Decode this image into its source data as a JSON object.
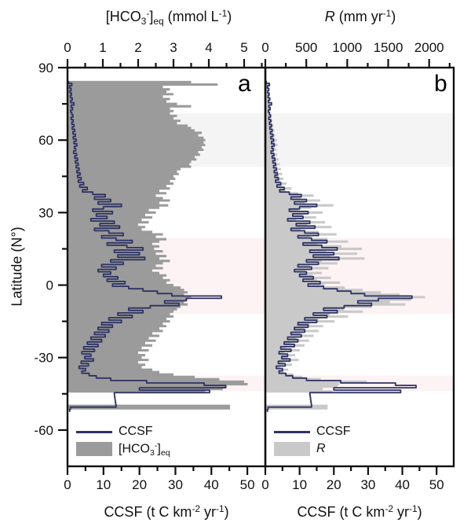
{
  "figure": {
    "y_axis": {
      "label": "Latitude (N°)",
      "major_ticks": [
        90,
        60,
        30,
        0,
        -30,
        -60
      ],
      "minor_ticks": [
        75,
        45,
        15,
        -15,
        -45
      ],
      "range": [
        90,
        -75
      ]
    },
    "panels": [
      {
        "letter": "a",
        "top_axis": {
          "title_parts": [
            {
              "t": "[HCO"
            },
            {
              "t": "3",
              "sub": true
            },
            {
              "t": "-",
              "sup": true
            },
            {
              "t": "]"
            },
            {
              "t": "eq",
              "sub": true
            },
            {
              "t": " (mmol L"
            },
            {
              "t": "-1",
              "sup": true
            },
            {
              "t": ")"
            }
          ],
          "major_ticks": [
            0,
            1,
            2,
            3,
            4,
            5
          ],
          "minor_step": 0.5,
          "range": [
            0,
            5.6
          ]
        },
        "bottom_axis": {
          "title_parts": [
            {
              "t": "CCSF (t C km"
            },
            {
              "t": "-2",
              "sup": true
            },
            {
              "t": " yr"
            },
            {
              "t": "-1",
              "sup": true
            },
            {
              "t": ")"
            }
          ],
          "major_ticks": [
            0,
            10,
            20,
            30,
            40,
            50
          ],
          "minor_step": 5,
          "range": [
            0,
            55
          ]
        },
        "legend": {
          "line_label": "CCSF",
          "area_label_parts": [
            {
              "t": "[HCO"
            },
            {
              "t": "3",
              "sub": true
            },
            {
              "t": "-",
              "sup": true
            },
            {
              "t": "]"
            },
            {
              "t": "eq",
              "sub": true
            }
          ]
        }
      },
      {
        "letter": "b",
        "top_axis": {
          "title_parts": [
            {
              "t": "R",
              "i": true
            },
            {
              "t": " (mm yr"
            },
            {
              "t": "-1",
              "sup": true
            },
            {
              "t": ")"
            }
          ],
          "major_ticks": [
            0,
            500,
            1000,
            1500,
            2000
          ],
          "minor_step": 250,
          "range": [
            0,
            2300
          ]
        },
        "bottom_axis": {
          "title_parts": [
            {
              "t": "CCSF (t C km"
            },
            {
              "t": "-2",
              "sup": true
            },
            {
              "t": " yr"
            },
            {
              "t": "-1",
              "sup": true
            },
            {
              "t": ")"
            }
          ],
          "major_ticks": [
            0,
            10,
            20,
            30,
            40,
            50
          ],
          "minor_step": 5,
          "range": [
            0,
            55
          ]
        },
        "legend": {
          "line_label": "CCSF",
          "area_label_parts": [
            {
              "t": "R",
              "i": true
            }
          ]
        }
      }
    ],
    "colors": {
      "line": "#2e3262",
      "hco3_fill": "#9b9b9b",
      "runoff_fill": "#c9c9c9",
      "band_gray": "#f4f4f4",
      "band_pink": "#fdf2f4",
      "frame": "#111111"
    },
    "bands": [
      {
        "lat_from": 71,
        "lat_to": 49,
        "color_key": "band_gray"
      },
      {
        "lat_from": 19.5,
        "lat_to": -12,
        "color_key": "band_pink"
      },
      {
        "lat_from": -37.4,
        "lat_to": -43.9,
        "color_key": "band_pink"
      }
    ]
  },
  "chart_data": {
    "type": "line",
    "orientation": "horizontal profile, y axis = latitude (°N), values on x axes",
    "y_range_latitude": [
      90,
      -75
    ],
    "panel_a_top_axis_range_mmol_L": [
      0,
      5.6
    ],
    "panel_b_top_axis_range_mm_yr": [
      0,
      2300
    ],
    "bottom_axis_range_t_C_km2_yr": [
      0,
      55
    ],
    "latitude": [
      84,
      83,
      82,
      81,
      80,
      79,
      78,
      77,
      76,
      75,
      74,
      73,
      72,
      71,
      70,
      69,
      68,
      67,
      66,
      65,
      64,
      63,
      62,
      61,
      60,
      59,
      58,
      57,
      56,
      55,
      54,
      53,
      52,
      51,
      50,
      49,
      48,
      47,
      46,
      45,
      44,
      43,
      42,
      41,
      40,
      39,
      38,
      37,
      36,
      35,
      34,
      33,
      32,
      31,
      30,
      29,
      28,
      27,
      26,
      25,
      24,
      23,
      22,
      21,
      20,
      19,
      18,
      17,
      16,
      15,
      14,
      13,
      12,
      11,
      10,
      9,
      8,
      7,
      6,
      5,
      4,
      3,
      2,
      1,
      0,
      -1,
      -2,
      -3,
      -4,
      -5,
      -6,
      -7,
      -8,
      -9,
      -10,
      -11,
      -12,
      -13,
      -14,
      -15,
      -16,
      -17,
      -18,
      -19,
      -20,
      -21,
      -22,
      -23,
      -24,
      -25,
      -26,
      -27,
      -28,
      -29,
      -30,
      -31,
      -32,
      -33,
      -34,
      -35,
      -36,
      -37,
      -38,
      -39,
      -40,
      -41,
      -42,
      -43,
      -44,
      -45,
      -46,
      -47,
      -48,
      -49,
      -50,
      -51,
      -52
    ],
    "series": [
      {
        "name": "CCSF",
        "unit": "t C km-2 yr-1",
        "panel": "both",
        "axis": "bottom",
        "values": [
          0.3,
          1.2,
          0.6,
          1.0,
          0.7,
          1.1,
          0.8,
          1.3,
          0.9,
          1.8,
          1.0,
          1.4,
          0.9,
          1.2,
          1.5,
          1.0,
          1.6,
          1.2,
          1.8,
          1.3,
          2.0,
          1.5,
          2.2,
          1.6,
          2.4,
          1.8,
          2.6,
          1.9,
          2.3,
          1.7,
          2.5,
          2.0,
          2.8,
          2.2,
          3.0,
          2.4,
          3.2,
          2.6,
          3.5,
          2.8,
          3.8,
          3.0,
          4.5,
          3.4,
          5.5,
          4.2,
          7.0,
          10.5,
          7.5,
          12.0,
          8.5,
          15.0,
          10.0,
          7.0,
          12.5,
          8.0,
          11.0,
          6.5,
          13.0,
          9.0,
          14.5,
          7.5,
          11.5,
          15.5,
          9.5,
          13.5,
          18.0,
          11.0,
          16.5,
          21.0,
          13.0,
          20.0,
          14.0,
          21.5,
          12.0,
          15.5,
          9.5,
          13.5,
          8.5,
          12.0,
          10.0,
          14.0,
          11.0,
          16.0,
          12.5,
          17.0,
          21.0,
          25.0,
          29.0,
          42.8,
          33.0,
          27.0,
          31.0,
          23.0,
          17.0,
          21.0,
          14.0,
          18.0,
          11.5,
          15.0,
          9.5,
          12.5,
          8.5,
          11.5,
          7.5,
          10.5,
          6.5,
          9.5,
          5.5,
          8.5,
          4.5,
          7.5,
          4.0,
          6.5,
          4.8,
          7.2,
          3.8,
          5.8,
          3.2,
          5.0,
          4.0,
          6.0,
          8.0,
          12.0,
          22.0,
          38.0,
          44.0,
          20.0,
          39.5,
          13.0,
          13.1,
          13.2,
          13.3,
          13.4,
          13.5,
          0.8,
          0.6
        ]
      },
      {
        "name": "[HCO3-]eq",
        "unit": "mmol L-1",
        "panel": "a",
        "axis": "top",
        "values": [
          3.5,
          4.25,
          2.7,
          2.9,
          2.8,
          3.0,
          2.7,
          2.9,
          2.8,
          3.1,
          3.5,
          2.9,
          3.0,
          2.9,
          3.1,
          3.0,
          3.2,
          3.1,
          3.4,
          3.5,
          3.6,
          3.8,
          3.7,
          3.85,
          3.9,
          3.85,
          3.9,
          3.8,
          3.85,
          3.7,
          3.75,
          3.6,
          3.65,
          3.5,
          3.45,
          3.5,
          3.2,
          3.1,
          3.15,
          3.0,
          3.05,
          2.9,
          3.0,
          2.8,
          2.9,
          2.6,
          2.8,
          2.5,
          2.7,
          2.9,
          2.6,
          2.85,
          2.6,
          2.3,
          2.5,
          2.2,
          2.4,
          2.1,
          2.3,
          2.0,
          2.2,
          2.1,
          2.4,
          2.7,
          2.5,
          2.8,
          2.6,
          2.4,
          2.6,
          2.45,
          2.7,
          2.5,
          2.8,
          2.6,
          2.9,
          2.7,
          2.5,
          2.7,
          2.4,
          2.6,
          2.8,
          2.7,
          2.9,
          2.8,
          3.0,
          3.2,
          3.3,
          3.4,
          3.3,
          3.5,
          3.4,
          3.3,
          3.4,
          3.2,
          3.1,
          3.0,
          2.9,
          3.0,
          2.8,
          2.9,
          2.7,
          2.8,
          2.6,
          2.7,
          2.4,
          2.6,
          2.3,
          2.5,
          2.2,
          2.4,
          2.1,
          2.3,
          2.0,
          2.2,
          2.1,
          2.3,
          2.0,
          2.2,
          2.1,
          2.4,
          2.6,
          3.0,
          3.6,
          4.3,
          5.0,
          5.1,
          4.5,
          4.4,
          3.9,
          null,
          null,
          null,
          null,
          null,
          4.6,
          4.6,
          null
        ]
      },
      {
        "name": "R",
        "unit": "mm yr-1",
        "panel": "b",
        "axis": "top",
        "values": [
          20,
          60,
          30,
          50,
          35,
          55,
          40,
          60,
          45,
          80,
          50,
          65,
          45,
          60,
          80,
          60,
          90,
          70,
          100,
          80,
          110,
          90,
          120,
          100,
          140,
          110,
          150,
          115,
          135,
          105,
          145,
          120,
          160,
          130,
          175,
          145,
          190,
          155,
          205,
          165,
          220,
          180,
          260,
          200,
          320,
          245,
          400,
          590,
          430,
          670,
          480,
          830,
          560,
          400,
          700,
          455,
          620,
          375,
          730,
          510,
          810,
          430,
          650,
          870,
          545,
          760,
          1010,
          630,
          930,
          1180,
          740,
          1120,
          800,
          1210,
          690,
          880,
          545,
          770,
          490,
          690,
          575,
          800,
          630,
          910,
          720,
          970,
          1190,
          1410,
          1640,
          1950,
          1780,
          1520,
          1710,
          1300,
          960,
          1190,
          790,
          1010,
          650,
          845,
          540,
          705,
          480,
          650,
          425,
          590,
          370,
          535,
          310,
          480,
          255,
          420,
          225,
          365,
          270,
          405,
          215,
          325,
          180,
          280,
          225,
          340,
          450,
          675,
          1240,
          900,
          880,
          700,
          820,
          null,
          null,
          null,
          null,
          null,
          760,
          760,
          null
        ]
      }
    ]
  }
}
